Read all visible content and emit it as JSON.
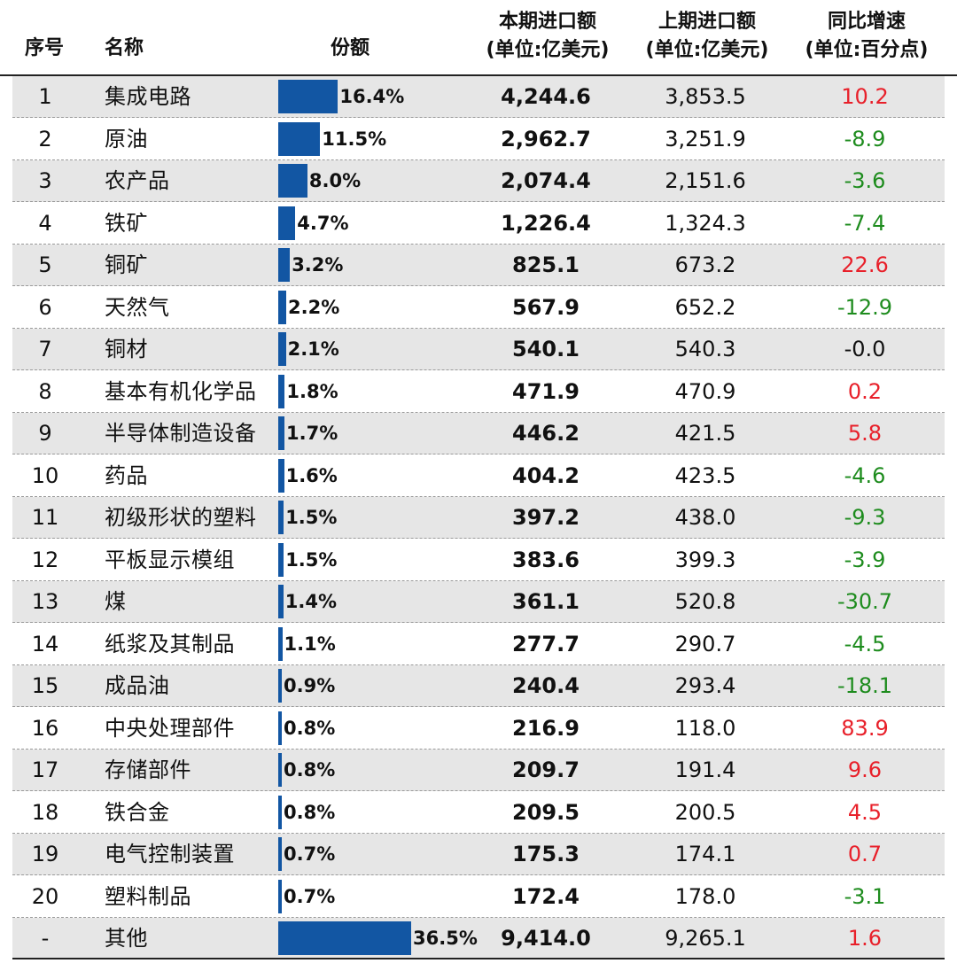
{
  "colors": {
    "bar": "#1256a3",
    "up": "#e8202a",
    "down": "#1e8c1e",
    "neutral": "#111111",
    "shade": "#e6e6e6"
  },
  "header": {
    "idx": "序号",
    "name": "名称",
    "share": "份额",
    "current_l1": "本期进口额",
    "current_l2": "(单位:亿美元)",
    "previous_l1": "上期进口额",
    "previous_l2": "(单位:亿美元)",
    "yoy_l1": "同比增速",
    "yoy_l2": "(单位:百分点)"
  },
  "chart_data": {
    "type": "table",
    "title": "",
    "columns": [
      "序号",
      "名称",
      "份额",
      "本期进口额 (单位:亿美元)",
      "上期进口额 (单位:亿美元)",
      "同比增速 (单位:百分点)"
    ],
    "share_max": 36.5,
    "rows": [
      {
        "idx": "1",
        "name": "集成电路",
        "share": 16.4,
        "share_label": "16.4%",
        "current": "4,244.6",
        "previous": "3,853.5",
        "yoy": "10.2",
        "yoy_color": "up"
      },
      {
        "idx": "2",
        "name": "原油",
        "share": 11.5,
        "share_label": "11.5%",
        "current": "2,962.7",
        "previous": "3,251.9",
        "yoy": "-8.9",
        "yoy_color": "down"
      },
      {
        "idx": "3",
        "name": "农产品",
        "share": 8.0,
        "share_label": "8.0%",
        "current": "2,074.4",
        "previous": "2,151.6",
        "yoy": "-3.6",
        "yoy_color": "down"
      },
      {
        "idx": "4",
        "name": "铁矿",
        "share": 4.7,
        "share_label": "4.7%",
        "current": "1,226.4",
        "previous": "1,324.3",
        "yoy": "-7.4",
        "yoy_color": "down"
      },
      {
        "idx": "5",
        "name": "铜矿",
        "share": 3.2,
        "share_label": "3.2%",
        "current": "825.1",
        "previous": "673.2",
        "yoy": "22.6",
        "yoy_color": "up"
      },
      {
        "idx": "6",
        "name": "天然气",
        "share": 2.2,
        "share_label": "2.2%",
        "current": "567.9",
        "previous": "652.2",
        "yoy": "-12.9",
        "yoy_color": "down"
      },
      {
        "idx": "7",
        "name": "铜材",
        "share": 2.1,
        "share_label": "2.1%",
        "current": "540.1",
        "previous": "540.3",
        "yoy": "-0.0",
        "yoy_color": "neutral"
      },
      {
        "idx": "8",
        "name": "基本有机化学品",
        "share": 1.8,
        "share_label": "1.8%",
        "current": "471.9",
        "previous": "470.9",
        "yoy": "0.2",
        "yoy_color": "up"
      },
      {
        "idx": "9",
        "name": "半导体制造设备",
        "share": 1.7,
        "share_label": "1.7%",
        "current": "446.2",
        "previous": "421.5",
        "yoy": "5.8",
        "yoy_color": "up"
      },
      {
        "idx": "10",
        "name": "药品",
        "share": 1.6,
        "share_label": "1.6%",
        "current": "404.2",
        "previous": "423.5",
        "yoy": "-4.6",
        "yoy_color": "down"
      },
      {
        "idx": "11",
        "name": "初级形状的塑料",
        "share": 1.5,
        "share_label": "1.5%",
        "current": "397.2",
        "previous": "438.0",
        "yoy": "-9.3",
        "yoy_color": "down"
      },
      {
        "idx": "12",
        "name": "平板显示模组",
        "share": 1.5,
        "share_label": "1.5%",
        "current": "383.6",
        "previous": "399.3",
        "yoy": "-3.9",
        "yoy_color": "down"
      },
      {
        "idx": "13",
        "name": "煤",
        "share": 1.4,
        "share_label": "1.4%",
        "current": "361.1",
        "previous": "520.8",
        "yoy": "-30.7",
        "yoy_color": "down"
      },
      {
        "idx": "14",
        "name": "纸浆及其制品",
        "share": 1.1,
        "share_label": "1.1%",
        "current": "277.7",
        "previous": "290.7",
        "yoy": "-4.5",
        "yoy_color": "down"
      },
      {
        "idx": "15",
        "name": "成品油",
        "share": 0.9,
        "share_label": "0.9%",
        "current": "240.4",
        "previous": "293.4",
        "yoy": "-18.1",
        "yoy_color": "down"
      },
      {
        "idx": "16",
        "name": "中央处理部件",
        "share": 0.8,
        "share_label": "0.8%",
        "current": "216.9",
        "previous": "118.0",
        "yoy": "83.9",
        "yoy_color": "up"
      },
      {
        "idx": "17",
        "name": "存储部件",
        "share": 0.8,
        "share_label": "0.8%",
        "current": "209.7",
        "previous": "191.4",
        "yoy": "9.6",
        "yoy_color": "up"
      },
      {
        "idx": "18",
        "name": "铁合金",
        "share": 0.8,
        "share_label": "0.8%",
        "current": "209.5",
        "previous": "200.5",
        "yoy": "4.5",
        "yoy_color": "up"
      },
      {
        "idx": "19",
        "name": "电气控制装置",
        "share": 0.7,
        "share_label": "0.7%",
        "current": "175.3",
        "previous": "174.1",
        "yoy": "0.7",
        "yoy_color": "up"
      },
      {
        "idx": "20",
        "name": "塑料制品",
        "share": 0.7,
        "share_label": "0.7%",
        "current": "172.4",
        "previous": "178.0",
        "yoy": "-3.1",
        "yoy_color": "down"
      },
      {
        "idx": "-",
        "name": "其他",
        "share": 36.5,
        "share_label": "36.5%",
        "current": "9,414.0",
        "previous": "9,265.1",
        "yoy": "1.6",
        "yoy_color": "up"
      }
    ]
  }
}
